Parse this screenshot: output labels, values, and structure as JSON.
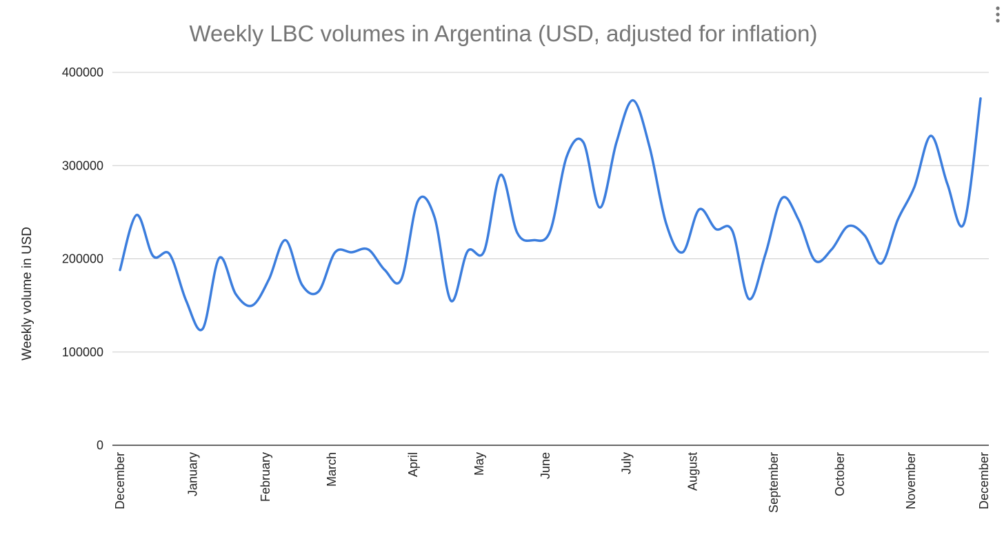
{
  "colors": {
    "series": "#3b7ddd"
  },
  "icons": {
    "menu": "more-vert-icon"
  },
  "chart_data": {
    "type": "line",
    "title": "Weekly LBC volumes in Argentina (USD, adjusted for inflation)",
    "xlabel": "",
    "ylabel": "Weekly volume in USD",
    "ylim": [
      0,
      400000
    ],
    "yticks": [
      0,
      100000,
      200000,
      300000,
      400000
    ],
    "yticks_labels": [
      "0",
      "100000",
      "200000",
      "300000",
      "400000"
    ],
    "grid": true,
    "legend": "none",
    "x_ticks": [
      {
        "label": "December",
        "week": 0
      },
      {
        "label": "January",
        "week": 4.4
      },
      {
        "label": "February",
        "week": 8.8
      },
      {
        "label": "March",
        "week": 12.8
      },
      {
        "label": "April",
        "week": 17.7
      },
      {
        "label": "May",
        "week": 21.7
      },
      {
        "label": "June",
        "week": 25.7
      },
      {
        "label": "July",
        "week": 30.6
      },
      {
        "label": "August",
        "week": 34.6
      },
      {
        "label": "September",
        "week": 39.5
      },
      {
        "label": "October",
        "week": 43.5
      },
      {
        "label": "November",
        "week": 47.8
      },
      {
        "label": "December",
        "week": 52.2
      }
    ],
    "series": [
      {
        "name": "",
        "x": [
          0,
          1,
          2,
          3,
          4,
          5,
          6,
          7,
          8,
          9,
          10,
          11,
          12,
          13,
          14,
          15,
          16,
          17,
          18,
          19,
          20,
          21,
          22,
          23,
          24,
          25,
          26,
          27,
          28,
          29,
          30,
          31,
          32,
          33,
          34,
          35,
          36,
          37,
          38,
          39,
          40,
          41,
          42,
          43,
          44,
          45,
          46,
          47,
          48,
          49,
          50,
          51,
          52
        ],
        "values": [
          188000,
          247000,
          203000,
          205000,
          155000,
          125000,
          201000,
          162000,
          150000,
          178000,
          220000,
          172000,
          165000,
          207000,
          207000,
          210000,
          188000,
          178000,
          262000,
          245000,
          155000,
          208000,
          208000,
          290000,
          228000,
          220000,
          230000,
          310000,
          325000,
          255000,
          325000,
          370000,
          320000,
          238000,
          207000,
          253000,
          232000,
          230000,
          157000,
          205000,
          265000,
          242000,
          198000,
          210000,
          235000,
          225000,
          195000,
          242000,
          277000,
          332000,
          280000,
          238000,
          372000
        ]
      }
    ]
  }
}
